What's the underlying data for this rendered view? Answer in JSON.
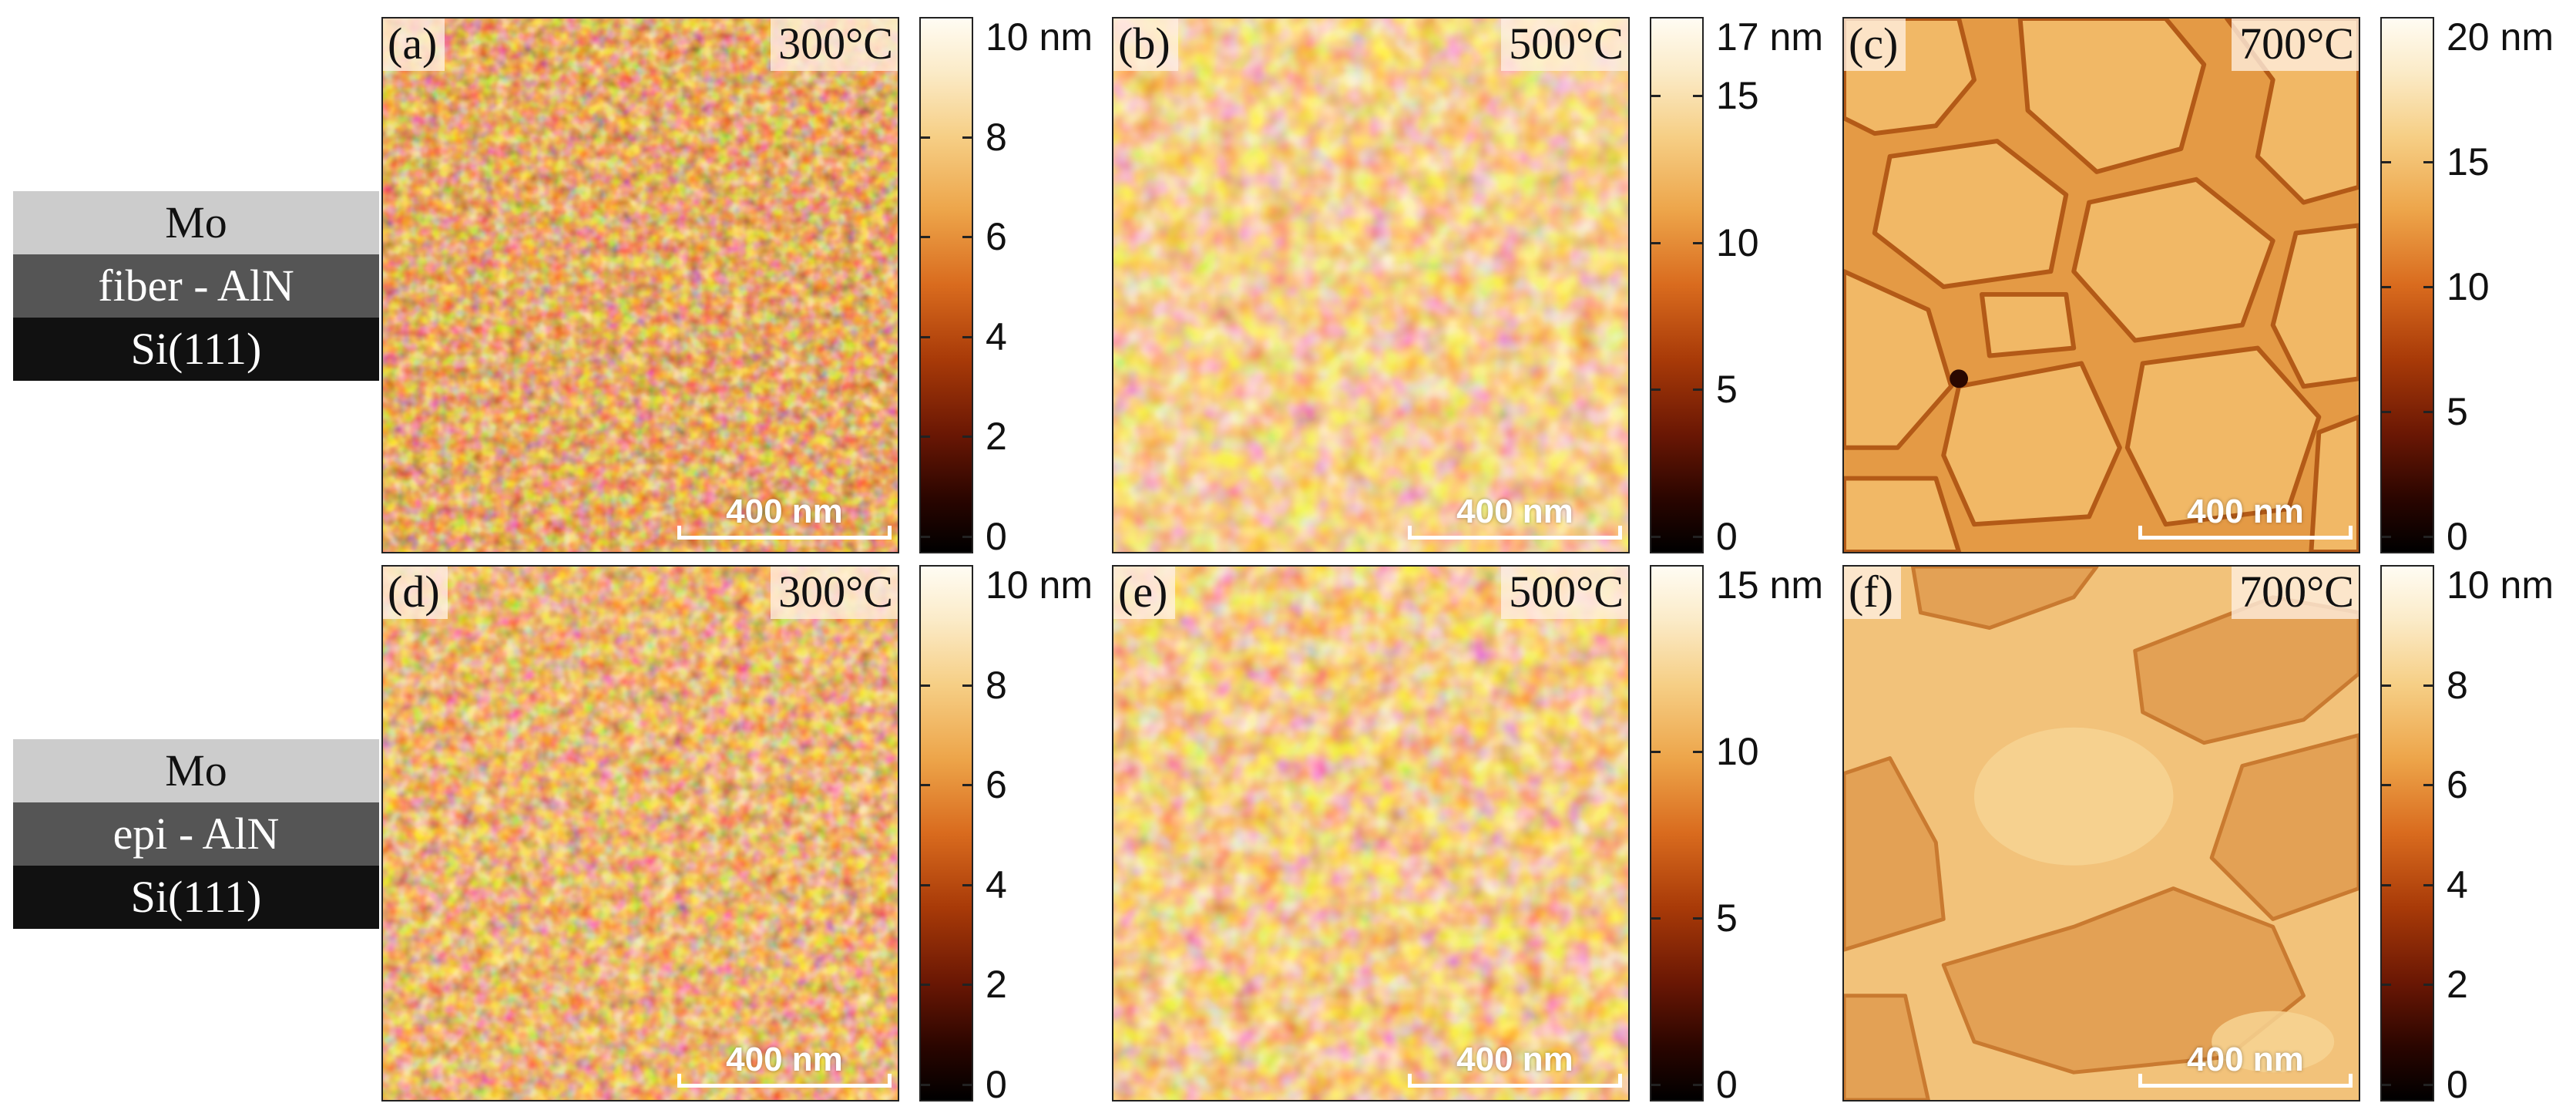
{
  "stacks": [
    {
      "layers": [
        {
          "text": "Mo",
          "bg": "#cccccc",
          "fg": "#111111"
        },
        {
          "text": "fiber - AlN",
          "bg": "#555555",
          "fg": "#ffffff"
        },
        {
          "text": "Si(111)",
          "bg": "#111111",
          "fg": "#ffffff"
        }
      ]
    },
    {
      "layers": [
        {
          "text": "Mo",
          "bg": "#cccccc",
          "fg": "#111111"
        },
        {
          "text": "epi - AlN",
          "bg": "#555555",
          "fg": "#ffffff"
        },
        {
          "text": "Si(111)",
          "bg": "#111111",
          "fg": "#ffffff"
        }
      ]
    }
  ],
  "panels": [
    {
      "label": "(a)",
      "temp": "300°C",
      "scalebar": "400 nm",
      "colorbar": {
        "max_label": "10 nm",
        "max": 10,
        "ticks": [
          0,
          2,
          4,
          6,
          8
        ]
      }
    },
    {
      "label": "(b)",
      "temp": "500°C",
      "scalebar": "400 nm",
      "colorbar": {
        "max_label": "17 nm",
        "max": 17,
        "ticks": [
          0,
          5,
          10,
          15
        ]
      }
    },
    {
      "label": "(c)",
      "temp": "700°C",
      "scalebar": "400 nm",
      "colorbar": {
        "max_label": "20 nm",
        "max": 20,
        "ticks": [
          0,
          5,
          10,
          15
        ]
      }
    },
    {
      "label": "(d)",
      "temp": "300°C",
      "scalebar": "400 nm",
      "colorbar": {
        "max_label": "10 nm",
        "max": 10,
        "ticks": [
          0,
          2,
          4,
          6,
          8
        ]
      }
    },
    {
      "label": "(e)",
      "temp": "500°C",
      "scalebar": "400 nm",
      "colorbar": {
        "max_label": "15 nm",
        "max": 15,
        "ticks": [
          0,
          5,
          10
        ]
      }
    },
    {
      "label": "(f)",
      "temp": "700°C",
      "scalebar": "400 nm",
      "colorbar": {
        "max_label": "10 nm",
        "max": 10,
        "ticks": [
          0,
          2,
          4,
          6,
          8
        ]
      }
    }
  ]
}
